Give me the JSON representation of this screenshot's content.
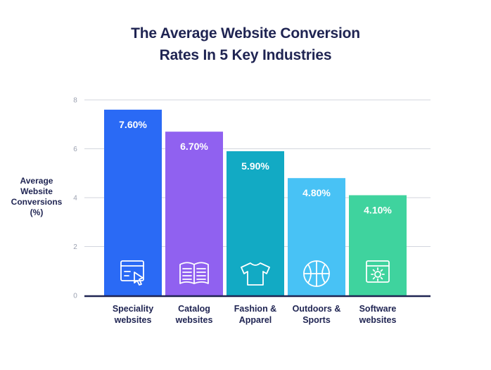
{
  "title_line1": "The Average Website Conversion",
  "title_line2": "Rates In 5 Key Industries",
  "chart_data": {
    "type": "bar",
    "title": "The Average Website Conversion Rates In 5 Key Industries",
    "ylabel": "Average Website Conversions (%)",
    "ylabel_lines": [
      "Average",
      "Website",
      "Conversions",
      "(%)"
    ],
    "xlabel": "",
    "ylim": [
      0,
      8
    ],
    "yticks": [
      0,
      2,
      4,
      6,
      8
    ],
    "grid": true,
    "categories": [
      [
        "Speciality",
        "websites"
      ],
      [
        "Catalog",
        "websites"
      ],
      [
        "Fashion &",
        "Apparel"
      ],
      [
        "Outdoors &",
        "Sports"
      ],
      [
        "Software",
        "websites"
      ]
    ],
    "values": [
      7.6,
      6.7,
      5.9,
      4.8,
      4.1
    ],
    "value_labels": [
      "7.60%",
      "6.70%",
      "5.90%",
      "4.80%",
      "4.10%"
    ],
    "colors": [
      "#2a6af5",
      "#9061f0",
      "#12aac4",
      "#48c2f5",
      "#3fd39e"
    ],
    "icons": [
      "browser-cursor-icon",
      "open-book-icon",
      "tshirt-icon",
      "basketball-icon",
      "browser-gear-icon"
    ]
  }
}
